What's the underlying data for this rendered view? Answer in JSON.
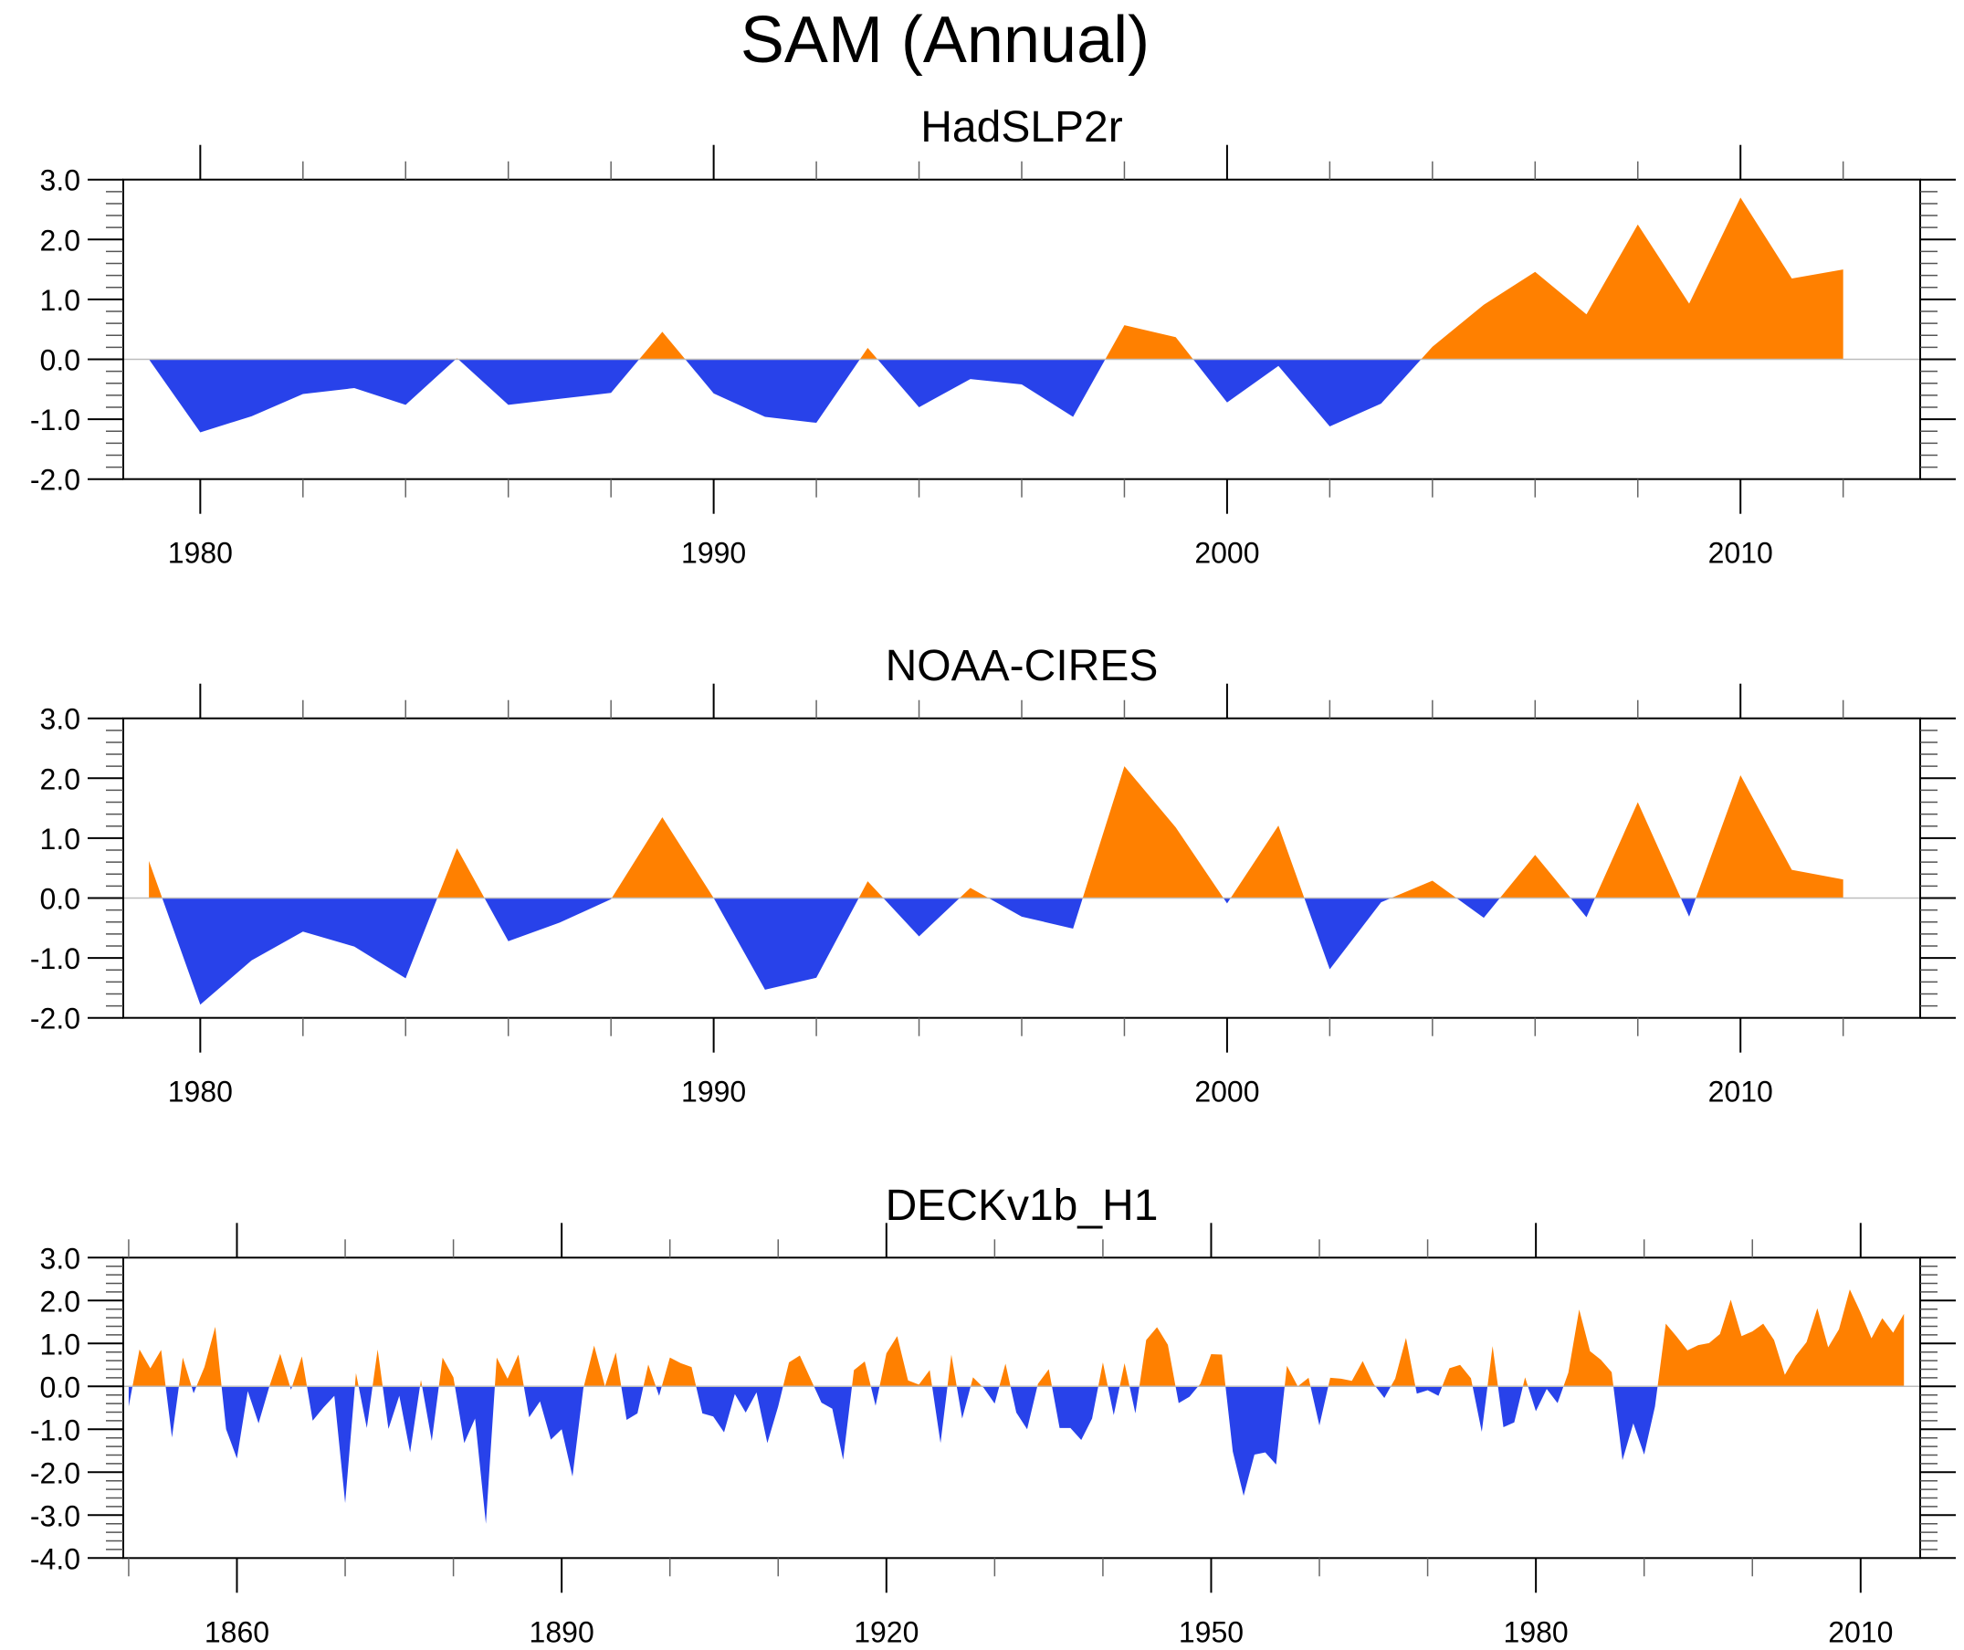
{
  "title": "SAM (Annual)",
  "colors": {
    "positive": "#FF8000",
    "negative": "#2842EA",
    "zero_line": "#BDBDBD",
    "axis": "#000000"
  },
  "chart_data": [
    {
      "type": "area",
      "title": "HadSLP2r",
      "xlabel": "",
      "ylabel": "",
      "xlim": [
        1978.5,
        2013.5
      ],
      "ylim": [
        -2.0,
        3.0
      ],
      "x_major_ticks": [
        1980,
        1990,
        2000,
        2010
      ],
      "x_minor_step": 2,
      "y_ticks": [
        -2.0,
        -1.0,
        0.0,
        1.0,
        2.0,
        3.0
      ],
      "y_tick_labels": [
        "-2.0",
        "-1.0",
        "0.0",
        "1.0",
        "2.0",
        "3.0"
      ],
      "y_minor_step": 0.2,
      "x": [
        1979,
        1980,
        1981,
        1982,
        1983,
        1984,
        1985,
        1986,
        1987,
        1988,
        1989,
        1990,
        1991,
        1992,
        1993,
        1994,
        1995,
        1996,
        1997,
        1998,
        1999,
        2000,
        2001,
        2002,
        2003,
        2004,
        2005,
        2006,
        2007,
        2008,
        2009,
        2010,
        2011,
        2012
      ],
      "values": [
        0.0,
        -1.22,
        -0.95,
        -0.58,
        -0.48,
        -0.76,
        0.02,
        -0.76,
        -0.66,
        -0.56,
        0.46,
        -0.57,
        -0.96,
        -1.06,
        0.19,
        -0.8,
        -0.33,
        -0.42,
        -0.96,
        0.57,
        0.37,
        -0.72,
        -0.11,
        -1.12,
        -0.74,
        0.21,
        0.91,
        1.46,
        0.75,
        2.25,
        0.93,
        2.7,
        1.35,
        1.5
      ],
      "fill_above_zero": "positive",
      "fill_below_zero": "negative"
    },
    {
      "type": "area",
      "title": "NOAA-CIRES",
      "xlabel": "",
      "ylabel": "",
      "xlim": [
        1978.5,
        2013.5
      ],
      "ylim": [
        -2.0,
        3.0
      ],
      "x_major_ticks": [
        1980,
        1990,
        2000,
        2010
      ],
      "x_minor_step": 2,
      "y_ticks": [
        -2.0,
        -1.0,
        0.0,
        1.0,
        2.0,
        3.0
      ],
      "y_tick_labels": [
        "-2.0",
        "-1.0",
        "0.0",
        "1.0",
        "2.0",
        "3.0"
      ],
      "y_minor_step": 0.2,
      "x": [
        1979,
        1980,
        1981,
        1982,
        1983,
        1984,
        1985,
        1986,
        1987,
        1988,
        1989,
        1990,
        1991,
        1992,
        1993,
        1994,
        1995,
        1996,
        1997,
        1998,
        1999,
        2000,
        2001,
        2002,
        2003,
        2004,
        2005,
        2006,
        2007,
        2008,
        2009,
        2010,
        2011,
        2012
      ],
      "values": [
        0.62,
        -1.78,
        -1.04,
        -0.56,
        -0.81,
        -1.34,
        0.83,
        -0.72,
        -0.41,
        -0.02,
        1.35,
        0.0,
        -1.53,
        -1.33,
        0.28,
        -0.64,
        0.17,
        -0.31,
        -0.51,
        2.2,
        1.18,
        -0.09,
        1.21,
        -1.19,
        -0.07,
        0.29,
        -0.33,
        0.72,
        -0.32,
        1.6,
        -0.31,
        2.05,
        0.47,
        0.31
      ],
      "fill_above_zero": "positive",
      "fill_below_zero": "negative"
    },
    {
      "type": "area",
      "title": "DECKv1b_H1",
      "xlabel": "",
      "ylabel": "",
      "xlim": [
        1849.5,
        2015.5
      ],
      "ylim": [
        -4.0,
        3.0
      ],
      "x_major_ticks": [
        1860,
        1890,
        1920,
        1950,
        1980,
        2010
      ],
      "x_minor_step": 10,
      "y_ticks": [
        -4.0,
        -3.0,
        -2.0,
        -1.0,
        0.0,
        1.0,
        2.0,
        3.0
      ],
      "y_tick_labels": [
        "-4.0",
        "-3.0",
        "-2.0",
        "-1.0",
        "0.0",
        "1.0",
        "2.0",
        "3.0"
      ],
      "y_minor_step": 0.2,
      "x_start": 1850,
      "x_step": 1,
      "values": [
        -0.47,
        0.86,
        0.42,
        0.85,
        -1.19,
        0.67,
        -0.16,
        0.45,
        1.39,
        -1.0,
        -1.68,
        -0.11,
        -0.86,
        0.0,
        0.76,
        -0.08,
        0.7,
        -0.8,
        -0.49,
        -0.22,
        -2.72,
        0.31,
        -0.97,
        0.86,
        -0.99,
        -0.22,
        -1.54,
        0.15,
        -1.27,
        0.67,
        0.21,
        -1.32,
        -0.75,
        -3.2,
        0.67,
        0.18,
        0.74,
        -0.72,
        -0.35,
        -1.24,
        -1.0,
        -2.1,
        -0.05,
        0.95,
        0.0,
        0.79,
        -0.78,
        -0.63,
        0.51,
        -0.22,
        0.67,
        0.54,
        0.45,
        -0.63,
        -0.7,
        -1.07,
        -0.18,
        -0.61,
        -0.14,
        -1.32,
        -0.47,
        0.56,
        0.72,
        0.17,
        -0.38,
        -0.52,
        -1.71,
        0.38,
        0.58,
        -0.45,
        0.77,
        1.17,
        0.14,
        0.04,
        0.38,
        -1.32,
        0.74,
        -0.75,
        0.21,
        -0.04,
        -0.4,
        0.53,
        -0.61,
        -1.0,
        0.06,
        0.4,
        -0.97,
        -0.97,
        -1.25,
        -0.75,
        0.56,
        -0.67,
        0.54,
        -0.63,
        1.08,
        1.38,
        0.97,
        -0.39,
        -0.24,
        0.06,
        0.75,
        0.74,
        -1.52,
        -2.55,
        -1.59,
        -1.54,
        -1.82,
        0.48,
        0.0,
        0.2,
        -0.91,
        0.2,
        0.18,
        0.13,
        0.59,
        0.06,
        -0.27,
        0.18,
        1.13,
        -0.17,
        -0.09,
        -0.22,
        0.42,
        0.5,
        0.19,
        -1.06,
        0.94,
        -0.95,
        -0.84,
        0.21,
        -0.58,
        -0.06,
        -0.39,
        0.32,
        1.79,
        0.82,
        0.62,
        0.33,
        -1.72,
        -0.86,
        -1.59,
        -0.47,
        1.46,
        1.16,
        0.84,
        0.96,
        1.01,
        1.22,
        2.02,
        1.17,
        1.28,
        1.46,
        1.08,
        0.27,
        0.71,
        1.03,
        1.82,
        0.91,
        1.33,
        2.26,
        1.72,
        1.12,
        1.59,
        1.25,
        1.69
      ],
      "fill_above_zero": "positive",
      "fill_below_zero": "negative"
    }
  ]
}
